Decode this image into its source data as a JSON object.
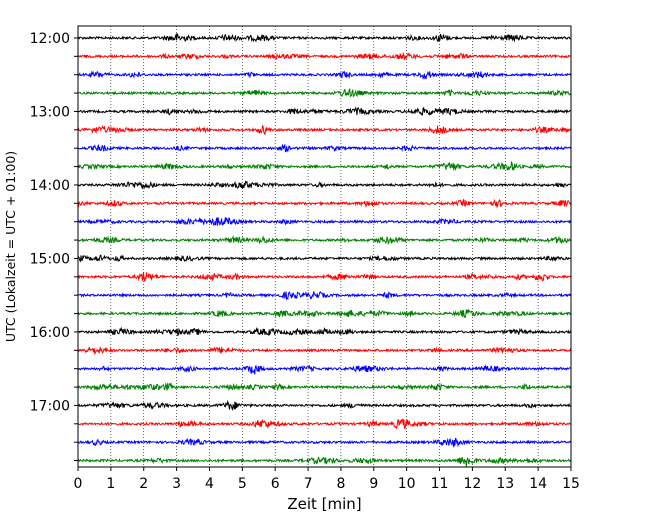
{
  "chart_data": {
    "type": "line",
    "subtype": "helicorder",
    "xlabel": "Zeit  [min]",
    "ylabel": "UTC (Lokalzeit = UTC + 01:00)",
    "xlim": [
      0,
      15
    ],
    "x_ticks": [
      "0",
      "1",
      "2",
      "3",
      "4",
      "5",
      "6",
      "7",
      "8",
      "9",
      "10",
      "11",
      "12",
      "13",
      "14",
      "15"
    ],
    "y_ticks": [
      "12:00",
      "13:00",
      "14:00",
      "15:00",
      "16:00",
      "17:00"
    ],
    "grid": "vertical-dotted",
    "trace_colors": [
      "#000000",
      "#ff0000",
      "#0000ff",
      "#008000"
    ],
    "traces": [
      {
        "start": "12:00",
        "color": "#000000"
      },
      {
        "start": "12:15",
        "color": "#ff0000"
      },
      {
        "start": "12:30",
        "color": "#0000ff"
      },
      {
        "start": "12:45",
        "color": "#008000"
      },
      {
        "start": "13:00",
        "color": "#000000"
      },
      {
        "start": "13:15",
        "color": "#ff0000"
      },
      {
        "start": "13:30",
        "color": "#0000ff"
      },
      {
        "start": "13:45",
        "color": "#008000"
      },
      {
        "start": "14:00",
        "color": "#000000"
      },
      {
        "start": "14:15",
        "color": "#ff0000"
      },
      {
        "start": "14:30",
        "color": "#0000ff"
      },
      {
        "start": "14:45",
        "color": "#008000"
      },
      {
        "start": "15:00",
        "color": "#000000"
      },
      {
        "start": "15:15",
        "color": "#ff0000"
      },
      {
        "start": "15:30",
        "color": "#0000ff"
      },
      {
        "start": "15:45",
        "color": "#008000"
      },
      {
        "start": "16:00",
        "color": "#000000"
      },
      {
        "start": "16:15",
        "color": "#ff0000"
      },
      {
        "start": "16:30",
        "color": "#0000ff"
      },
      {
        "start": "16:45",
        "color": "#008000"
      },
      {
        "start": "17:00",
        "color": "#000000"
      },
      {
        "start": "17:15",
        "color": "#ff0000"
      },
      {
        "start": "17:30",
        "color": "#0000ff"
      },
      {
        "start": "17:45",
        "color": "#008000"
      }
    ]
  }
}
